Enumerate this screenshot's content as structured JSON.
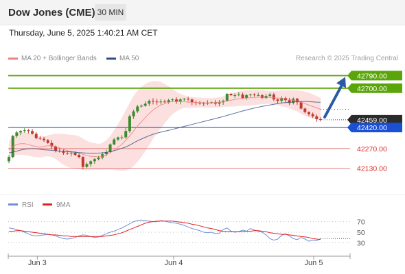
{
  "header": {
    "title": "Dow Jones (CME)",
    "timeframe": "30 MIN"
  },
  "datetime": "Thursday, June 5, 2025 1:40:21 AM CET",
  "legend": [
    {
      "label": "MA 20 + Bollinger Bands",
      "color": "#f08080"
    },
    {
      "label": "MA 50",
      "color": "#2d4d86"
    }
  ],
  "credit": "Research © 2025 Trading Central",
  "colors": {
    "up": "#3f8a2f",
    "down": "#c0392b",
    "resistance": "#5aa60a",
    "pivot": "#1a4fd6",
    "support": "#e27a7a",
    "band": "#fbd5d5",
    "arrow": "#2a5aa6"
  },
  "chart_data": [
    {
      "type": "candlestick",
      "title": "Dow Jones (CME)",
      "x_ticks": [
        "Jun 3",
        "Jun 4",
        "Jun 5"
      ],
      "ylim": [
        42050,
        42860
      ],
      "current_price": "42459.00",
      "levels": [
        {
          "label": "42790.00",
          "value": 42790,
          "kind": "resistance"
        },
        {
          "label": "42700.00",
          "value": 42700,
          "kind": "resistance"
        },
        {
          "label": "42420.00",
          "value": 42420,
          "kind": "pivot"
        },
        {
          "label": "42270.00",
          "value": 42270,
          "kind": "support"
        },
        {
          "label": "42130.00",
          "value": 42130,
          "kind": "support"
        }
      ],
      "forecast": {
        "direction": "up",
        "target": 42790
      },
      "close": [
        42210,
        42360,
        42385,
        42395,
        42400,
        42395,
        42375,
        42345,
        42340,
        42330,
        42310,
        42285,
        42255,
        42250,
        42240,
        42235,
        42240,
        42225,
        42210,
        42140,
        42160,
        42180,
        42195,
        42205,
        42230,
        42245,
        42300,
        42335,
        42350,
        42350,
        42395,
        42500,
        42535,
        42570,
        42575,
        42590,
        42610,
        42605,
        42600,
        42605,
        42600,
        42615,
        42620,
        42605,
        42620,
        42625,
        42620,
        42600,
        42595,
        42595,
        42590,
        42595,
        42600,
        42590,
        42600,
        42610,
        42660,
        42650,
        42650,
        42655,
        42630,
        42650,
        42655,
        42650,
        42650,
        42630,
        42645,
        42655,
        42620,
        42610,
        42630,
        42615,
        42595,
        42625,
        42600,
        42555,
        42530,
        42515,
        42500,
        42480,
        42475
      ],
      "ma20": [
        42260,
        42285,
        42300,
        42305,
        42305,
        42300,
        42290,
        42285,
        42280,
        42285,
        42290,
        42290,
        42285,
        42275,
        42265,
        42255,
        42250,
        42245,
        42240,
        42230,
        42220,
        42215,
        42215,
        42210,
        42215,
        42225,
        42240,
        42260,
        42280,
        42300,
        42330,
        42360,
        42395,
        42430,
        42460,
        42490,
        42520,
        42545,
        42565,
        42580,
        42590,
        42600,
        42605,
        42605,
        42605,
        42605,
        42600,
        42600,
        42598,
        42598,
        42596,
        42596,
        42595,
        42598,
        42600,
        42605,
        42610,
        42615,
        42620,
        42625,
        42628,
        42630,
        42632,
        42634,
        42636,
        42636,
        42636,
        42634,
        42632,
        42630,
        42628,
        42625,
        42620,
        42615,
        42610,
        42600,
        42590,
        42580,
        42570,
        42560,
        42550
      ],
      "ma50": [
        42240,
        42245,
        42252,
        42260,
        42265,
        42268,
        42270,
        42268,
        42265,
        42262,
        42260,
        42258,
        42255,
        42252,
        42250,
        42248,
        42246,
        42244,
        42242,
        42240,
        42238,
        42237,
        42237,
        42238,
        42240,
        42243,
        42248,
        42255,
        42263,
        42272,
        42282,
        42295,
        42310,
        42325,
        42338,
        42350,
        42362,
        42372,
        42380,
        42387,
        42394,
        42400,
        42407,
        42414,
        42421,
        42428,
        42435,
        42442,
        42449,
        42456,
        42463,
        42470,
        42477,
        42484,
        42491,
        42498,
        42506,
        42514,
        42522,
        42530,
        42538,
        42545,
        42552,
        42559,
        42565,
        42571,
        42576,
        42581,
        42586,
        42591,
        42595,
        42598,
        42600,
        42603,
        42605,
        42606,
        42606,
        42605,
        42603,
        42601,
        42600
      ],
      "bb_width": [
        60,
        70,
        75,
        80,
        82,
        80,
        78,
        76,
        74,
        72,
        75,
        80,
        90,
        100,
        110,
        115,
        118,
        120,
        118,
        112,
        105,
        98,
        95,
        92,
        96,
        105,
        120,
        140,
        165,
        190,
        215,
        235,
        250,
        255,
        250,
        240,
        225,
        205,
        185,
        165,
        140,
        115,
        90,
        70,
        55,
        45,
        40,
        38,
        36,
        35,
        34,
        34,
        34,
        35,
        36,
        38,
        42,
        46,
        50,
        52,
        54,
        55,
        55,
        54,
        52,
        50,
        48,
        46,
        48,
        52,
        56,
        60,
        64,
        70,
        76,
        82,
        86,
        88,
        86,
        84,
        82
      ]
    },
    {
      "type": "line",
      "series": [
        {
          "name": "RSI",
          "color": "#6f8ed8"
        },
        {
          "name": "9MA",
          "color": "#e02020"
        }
      ],
      "y_ticks": [
        "70",
        "50",
        "30"
      ],
      "ylim": [
        15,
        85
      ],
      "rsi": [
        58,
        57,
        55,
        53,
        50,
        47,
        44,
        43,
        44,
        45,
        46,
        45,
        43,
        40,
        38,
        37,
        38,
        40,
        43,
        45,
        44,
        42,
        40,
        41,
        44,
        47,
        50,
        52,
        55,
        58,
        62,
        66,
        70,
        72,
        73,
        72,
        71,
        70,
        70,
        72,
        71,
        69,
        68,
        67,
        65,
        63,
        60,
        57,
        55,
        53,
        50,
        49,
        50,
        47,
        48,
        55,
        58,
        52,
        50,
        51,
        54,
        52,
        57,
        54,
        52,
        50,
        45,
        38,
        35,
        37,
        44,
        47,
        43,
        38,
        36,
        40,
        37,
        33,
        35,
        34,
        38
      ],
      "rsi_ma": [
        52,
        52,
        53,
        53,
        52,
        51,
        50,
        49,
        48,
        47,
        46,
        45,
        45,
        44,
        43,
        43,
        42,
        42,
        42,
        42,
        42,
        42,
        42,
        42,
        42,
        43,
        44,
        45,
        47,
        49,
        52,
        55,
        58,
        61,
        64,
        67,
        69,
        70,
        71,
        71,
        71,
        71,
        71,
        70,
        69,
        68,
        67,
        65,
        64,
        62,
        60,
        58,
        57,
        55,
        53,
        52,
        51,
        51,
        51,
        51,
        51,
        52,
        52,
        53,
        53,
        52,
        51,
        49,
        48,
        47,
        46,
        46,
        45,
        44,
        43,
        42,
        41,
        40,
        38,
        37,
        36
      ]
    }
  ]
}
